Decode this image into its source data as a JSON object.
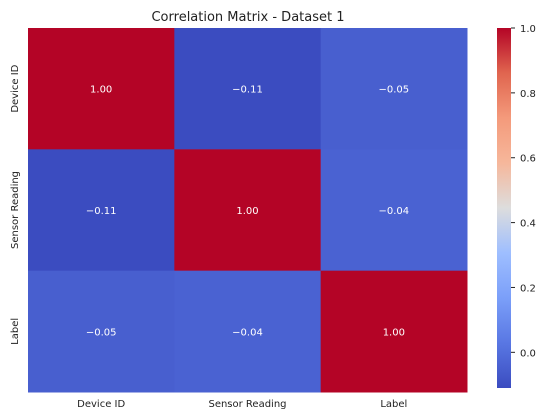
{
  "chart_data": {
    "type": "heatmap",
    "title": "Correlation Matrix - Dataset 1",
    "row_labels": [
      "Device ID",
      "Sensor Reading",
      "Label"
    ],
    "col_labels": [
      "Device ID",
      "Sensor Reading",
      "Label"
    ],
    "values": [
      [
        1.0,
        -0.11,
        -0.05
      ],
      [
        -0.11,
        1.0,
        -0.04
      ],
      [
        -0.05,
        -0.04,
        1.0
      ]
    ],
    "cell_text": [
      [
        "1.00",
        "−0.11",
        "−0.05"
      ],
      [
        "−0.11",
        "1.00",
        "−0.04"
      ],
      [
        "−0.05",
        "−0.04",
        "1.00"
      ]
    ],
    "colormap": "coolwarm",
    "vmin": -0.11,
    "vmax": 1.0,
    "colorbar": {
      "ticks": [
        1.0,
        0.8,
        0.6,
        0.4,
        0.2,
        0.0
      ],
      "tick_labels": [
        "1.0",
        "0.8",
        "0.6",
        "0.4",
        "0.2",
        "0.0"
      ]
    }
  }
}
